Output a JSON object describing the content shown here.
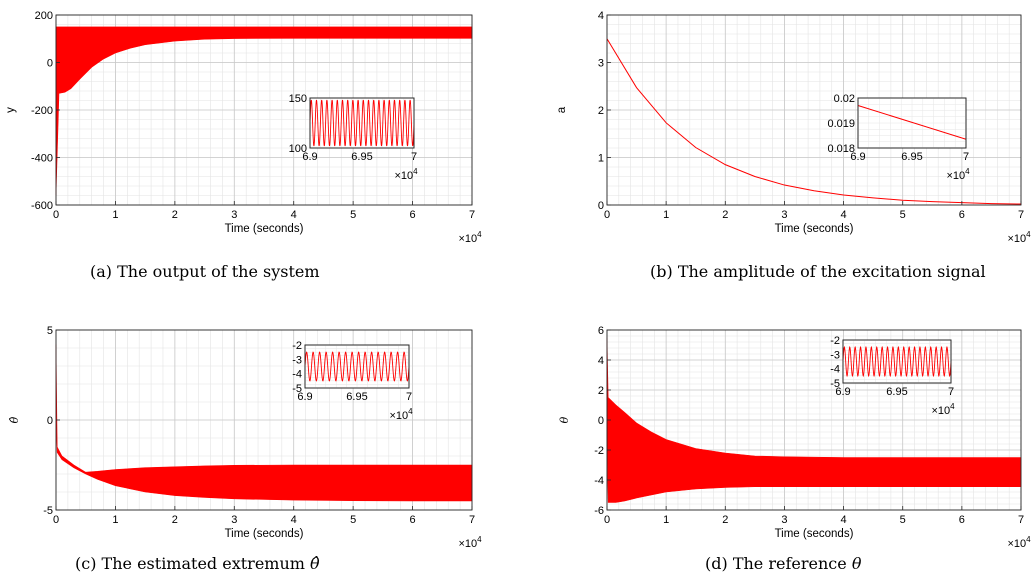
{
  "figure": {
    "captions": [
      {
        "label": "(a)",
        "text": "The output of the system",
        "symbol": ""
      },
      {
        "label": "(b)",
        "text": "The amplitude of the excitation signal",
        "symbol": ""
      },
      {
        "label": "(c)",
        "text": "The estimated extremum",
        "symbol": "θ̂"
      },
      {
        "label": "(d)",
        "text": "The reference",
        "symbol": "θ"
      }
    ],
    "line_color": "#ff0000"
  },
  "chart_data": [
    {
      "type": "line",
      "title": "",
      "xlabel": "Time (seconds)",
      "ylabel": "y",
      "x_scale_label": "×10^4",
      "xlim": [
        0,
        70000
      ],
      "ylim": [
        -600,
        200
      ],
      "xticks": [
        0,
        1,
        2,
        3,
        4,
        5,
        6,
        7
      ],
      "yticks": [
        -600,
        -400,
        -200,
        0,
        200
      ],
      "grid": true,
      "minor_grid": true,
      "series": [
        {
          "x": [
            0,
            500,
            1500,
            2500,
            4000,
            6000,
            8000,
            10000,
            12500,
            15000,
            20000,
            25000,
            30000,
            40000,
            50000,
            60000,
            70000
          ],
          "upper": [
            150,
            150,
            150,
            150,
            150,
            150,
            150,
            150,
            150,
            150,
            150,
            150,
            150,
            150,
            150,
            150,
            150
          ],
          "lower": [
            -560,
            -130,
            -125,
            -110,
            -70,
            -20,
            15,
            40,
            60,
            75,
            90,
            98,
            101,
            102,
            102,
            102,
            102
          ]
        }
      ],
      "inset": {
        "xlim": [
          69000,
          70000
        ],
        "ylim": [
          100,
          150
        ],
        "xticks": [
          "6.9",
          "6.95",
          "7"
        ],
        "yticks": [
          100,
          150
        ],
        "x_scale_label": "×10^4",
        "oscillation": {
          "center": 125,
          "amplitude": 23,
          "cycles": 20
        }
      }
    },
    {
      "type": "line",
      "title": "",
      "xlabel": "Time (seconds)",
      "ylabel": "a",
      "x_scale_label": "×10^4",
      "xlim": [
        0,
        70000
      ],
      "ylim": [
        0,
        4
      ],
      "xticks": [
        0,
        1,
        2,
        3,
        4,
        5,
        6,
        7
      ],
      "yticks": [
        0,
        1,
        2,
        3,
        4
      ],
      "grid": true,
      "minor_grid": true,
      "series": [
        {
          "x": [
            0,
            5000,
            10000,
            15000,
            20000,
            25000,
            30000,
            35000,
            40000,
            45000,
            50000,
            55000,
            60000,
            65000,
            70000
          ],
          "y": [
            3.5,
            2.47,
            1.73,
            1.21,
            0.85,
            0.6,
            0.42,
            0.3,
            0.21,
            0.15,
            0.1,
            0.07,
            0.05,
            0.03,
            0.02
          ]
        }
      ],
      "inset": {
        "xlim": [
          69000,
          70000
        ],
        "ylim": [
          0.018,
          0.02
        ],
        "xticks": [
          "6.9",
          "6.95",
          "7"
        ],
        "yticks": [
          "0.018",
          "0.019",
          "0.02"
        ],
        "x_scale_label": "×10^4",
        "line": {
          "x": [
            69000,
            70000
          ],
          "y": [
            0.0197,
            0.01835
          ]
        }
      }
    },
    {
      "type": "line",
      "title": "",
      "xlabel": "Time (seconds)",
      "ylabel": "θ̂",
      "x_scale_label": "×10^4",
      "xlim": [
        0,
        70000
      ],
      "ylim": [
        -5,
        5
      ],
      "xticks": [
        0,
        1,
        2,
        3,
        4,
        5,
        6,
        7
      ],
      "yticks": [
        -5,
        0,
        5
      ],
      "grid": true,
      "minor_grid": true,
      "series": [
        {
          "x": [
            0,
            200,
            1000,
            3000,
            5000,
            7000,
            10000,
            15000,
            20000,
            25000,
            30000,
            40000,
            50000,
            60000,
            70000
          ],
          "upper": [
            4.2,
            -1.5,
            -2.0,
            -2.5,
            -2.9,
            -2.85,
            -2.75,
            -2.65,
            -2.6,
            -2.55,
            -2.52,
            -2.5,
            -2.5,
            -2.5,
            -2.5
          ],
          "lower": [
            0.2,
            -1.8,
            -2.2,
            -2.65,
            -3.0,
            -3.3,
            -3.65,
            -4.0,
            -4.2,
            -4.3,
            -4.38,
            -4.45,
            -4.48,
            -4.5,
            -4.5
          ]
        }
      ],
      "inset": {
        "xlim": [
          69000,
          70000
        ],
        "ylim": [
          -5,
          -2
        ],
        "xticks": [
          "6.9",
          "6.95",
          "7"
        ],
        "yticks": [
          -5,
          -4,
          -3,
          -2
        ],
        "x_scale_label": "×10^4",
        "oscillation": {
          "center": -3.5,
          "amplitude": 1.0,
          "cycles": 16
        }
      }
    },
    {
      "type": "line",
      "title": "",
      "xlabel": "Time (seconds)",
      "ylabel": "θ",
      "x_scale_label": "×10^4",
      "xlim": [
        0,
        70000
      ],
      "ylim": [
        -6,
        6
      ],
      "xticks": [
        0,
        1,
        2,
        3,
        4,
        5,
        6,
        7
      ],
      "yticks": [
        -6,
        -4,
        -2,
        0,
        2,
        4,
        6
      ],
      "grid": true,
      "minor_grid": true,
      "series": [
        {
          "x": [
            0,
            200,
            1500,
            3000,
            5000,
            7500,
            10000,
            15000,
            20000,
            25000,
            30000,
            40000,
            50000,
            60000,
            70000
          ],
          "upper": [
            5.5,
            1.5,
            1.0,
            0.5,
            -0.2,
            -0.8,
            -1.3,
            -1.9,
            -2.2,
            -2.4,
            -2.45,
            -2.5,
            -2.5,
            -2.5,
            -2.5
          ],
          "lower": [
            -1.0,
            -5.5,
            -5.5,
            -5.4,
            -5.2,
            -5.0,
            -4.8,
            -4.6,
            -4.5,
            -4.45,
            -4.45,
            -4.45,
            -4.45,
            -4.45,
            -4.45
          ]
        }
      ],
      "inset": {
        "xlim": [
          69000,
          70000
        ],
        "ylim": [
          -5,
          -2
        ],
        "xticks": [
          "6.9",
          "6.95",
          "7"
        ],
        "yticks": [
          -5,
          -4,
          -3,
          -2
        ],
        "x_scale_label": "×10^4",
        "oscillation": {
          "center": -3.5,
          "amplitude": 1.0,
          "cycles": 20
        }
      }
    }
  ]
}
